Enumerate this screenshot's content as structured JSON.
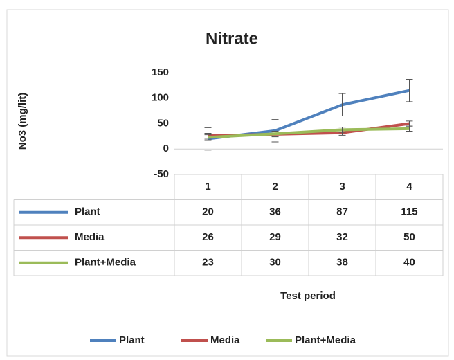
{
  "chart_data": {
    "type": "line",
    "title": "Nitrate",
    "y_label": "No3 (mg/lit)",
    "x_label": "Test period",
    "categories": [
      "1",
      "2",
      "3",
      "4"
    ],
    "ylim": [
      -50,
      150
    ],
    "yticks": [
      -50,
      0,
      50,
      100,
      150
    ],
    "series": [
      {
        "name": "Plant",
        "color": "#4f81bd",
        "values": [
          20,
          36,
          87,
          115
        ],
        "errors": [
          22,
          22,
          22,
          22
        ]
      },
      {
        "name": "Media",
        "color": "#c0504d",
        "values": [
          26,
          29,
          32,
          50
        ],
        "errors": [
          5,
          5,
          5,
          5
        ]
      },
      {
        "name": "Plant+Media",
        "color": "#9bbb59",
        "values": [
          23,
          30,
          38,
          40
        ],
        "errors": [
          5,
          5,
          5,
          5
        ]
      }
    ]
  }
}
